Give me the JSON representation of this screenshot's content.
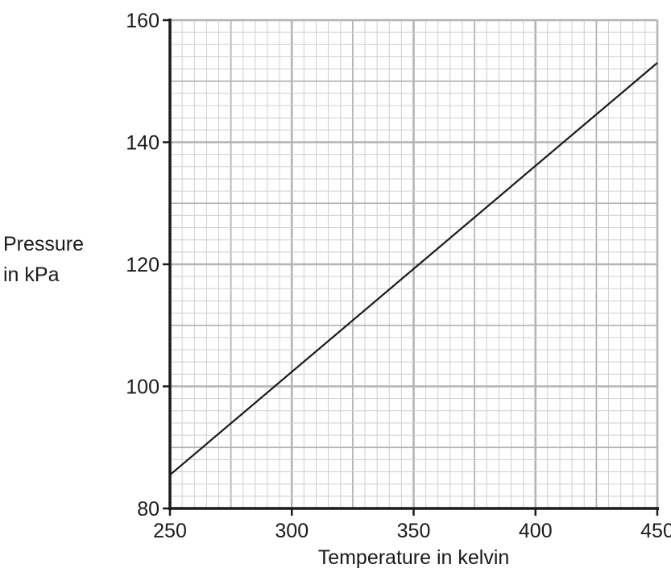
{
  "chart_data": {
    "type": "line",
    "title": "",
    "xlabel": "Temperature in kelvin",
    "ylabel": "Pressure in kPa",
    "ylabel_lines": [
      "Pressure",
      "in kPa"
    ],
    "xlim": [
      250,
      450
    ],
    "ylim": [
      80,
      160
    ],
    "x_ticks": [
      250,
      300,
      350,
      400,
      450
    ],
    "y_ticks": [
      80,
      100,
      120,
      140,
      160
    ],
    "grid": true,
    "series": [
      {
        "x": [
          250,
          450
        ],
        "y": [
          85.5,
          153
        ]
      }
    ],
    "colors": {
      "line": "#1a1a1a",
      "axis": "#1a1a1a",
      "grid_major": "#b4b4b4",
      "grid_minor": "#cfcfcf"
    }
  }
}
